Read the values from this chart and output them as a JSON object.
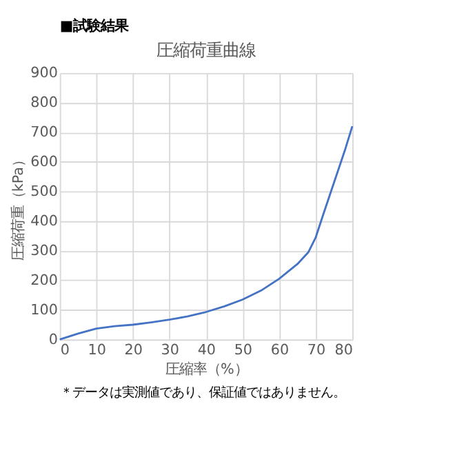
{
  "chart_data": {
    "type": "line",
    "title": "圧縮荷重曲線",
    "xlabel": "圧縮率（%）",
    "ylabel": "圧縮荷重（kPa）",
    "annotations": [
      "■試験結果",
      "＊データは実測値であり、保証値ではありません。"
    ],
    "x": [
      0,
      5,
      10,
      15,
      20,
      25,
      30,
      35,
      40,
      45,
      50,
      55,
      60,
      65,
      68,
      70,
      72,
      75,
      78,
      80
    ],
    "series": [
      {
        "color": "#4472c4",
        "values": [
          0,
          20,
          37,
          45,
          50,
          58,
          67,
          78,
          93,
          112,
          135,
          165,
          205,
          255,
          295,
          345,
          420,
          530,
          640,
          720
        ]
      }
    ],
    "xlim": [
      0,
      80
    ],
    "xticks": [
      0,
      10,
      20,
      30,
      40,
      50,
      60,
      70,
      80
    ],
    "ylim": [
      0,
      900
    ],
    "yticks": [
      0,
      100,
      200,
      300,
      400,
      500,
      600,
      700,
      800,
      900
    ],
    "grid": true,
    "marker": "none",
    "line_style": "solid"
  }
}
